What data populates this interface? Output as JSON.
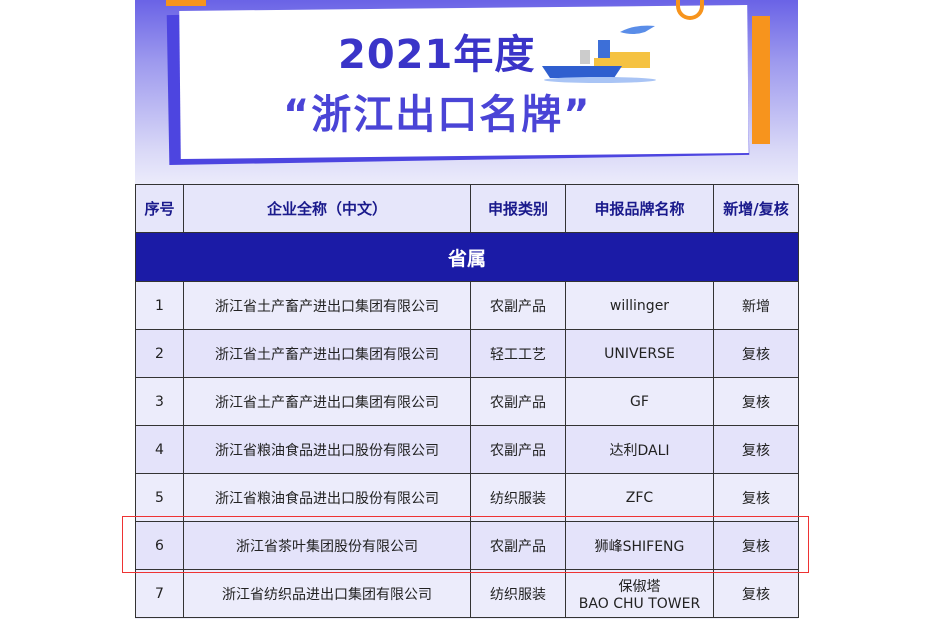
{
  "banner": {
    "year_title": "2021年度",
    "main_title": "“浙江出口名牌”"
  },
  "table": {
    "headers": [
      "序号",
      "企业全称（中文）",
      "申报类别",
      "申报品牌名称",
      "新增/复核"
    ],
    "section": "省属",
    "rows": [
      {
        "no": "1",
        "company": "浙江省土产畜产进出口集团有限公司",
        "category": "农副产品",
        "brand": "willinger",
        "brand2": "",
        "status": "新增"
      },
      {
        "no": "2",
        "company": "浙江省土产畜产进出口集团有限公司",
        "category": "轻工工艺",
        "brand": "UNIVERSE",
        "brand2": "",
        "status": "复核"
      },
      {
        "no": "3",
        "company": "浙江省土产畜产进出口集团有限公司",
        "category": "农副产品",
        "brand": "GF",
        "brand2": "",
        "status": "复核"
      },
      {
        "no": "4",
        "company": "浙江省粮油食品进出口股份有限公司",
        "category": "农副产品",
        "brand": "达利DALI",
        "brand2": "",
        "status": "复核"
      },
      {
        "no": "5",
        "company": "浙江省粮油食品进出口股份有限公司",
        "category": "纺织服装",
        "brand": "ZFC",
        "brand2": "",
        "status": "复核"
      },
      {
        "no": "6",
        "company": "浙江省茶叶集团股份有限公司",
        "category": "农副产品",
        "brand": "狮峰SHIFENG",
        "brand2": "",
        "status": "复核"
      },
      {
        "no": "7",
        "company": "浙江省纺织品进出口集团有限公司",
        "category": "纺织服装",
        "brand": "保俶塔",
        "brand2": "BAO CHU TOWER",
        "status": "复核"
      }
    ]
  },
  "colors": {
    "accent": "#4a44d6",
    "section_bg": "#1b1ba6",
    "highlight": "#e33333",
    "orange": "#f7941d"
  }
}
